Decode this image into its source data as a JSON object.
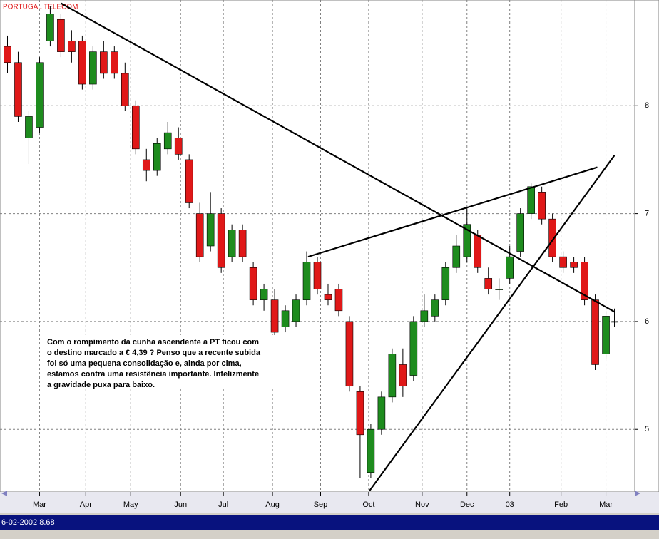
{
  "chart_data": {
    "type": "candlestick",
    "title": "PORTUGAL TELECOM",
    "annotation": [
      "Com o rompimento da cunha ascendente a PT ficou com",
      "o destino marcado a € 4,39 ? Penso que a recente subida",
      "foi só uma pequena consolidação e, ainda por cima,",
      "estamos contra uma resistência importante. Infelizmente",
      "a gravidade puxa para baixo."
    ],
    "status": "6-02-2002 8.68",
    "x": [
      -3,
      -2,
      -1,
      0,
      1,
      2,
      3,
      4,
      5,
      6,
      7,
      8,
      9,
      10,
      11,
      12,
      13,
      14,
      15,
      16,
      17,
      18,
      19,
      20,
      21,
      22,
      23,
      24,
      25,
      26,
      27,
      28,
      29,
      30,
      31,
      32,
      33,
      34,
      35,
      36,
      37,
      38,
      39,
      40,
      41,
      42,
      43,
      44,
      45,
      46,
      47,
      48,
      49,
      50,
      51,
      52,
      53,
      53.8
    ],
    "open": [
      8.55,
      8.4,
      7.7,
      7.8,
      8.6,
      8.8,
      8.6,
      8.6,
      8.2,
      8.5,
      8.5,
      8.3,
      8.0,
      7.5,
      7.4,
      7.6,
      7.7,
      7.5,
      7.0,
      6.7,
      7.0,
      6.6,
      6.85,
      6.5,
      6.2,
      6.2,
      5.95,
      6.0,
      6.2,
      6.55,
      6.25,
      6.3,
      6.0,
      5.35,
      4.6,
      5.0,
      5.3,
      5.6,
      5.5,
      6.0,
      6.05,
      6.2,
      6.5,
      6.6,
      6.8,
      6.4,
      6.3,
      6.4,
      6.65,
      7.0,
      7.2,
      6.95,
      6.6,
      6.55,
      6.55,
      6.2,
      5.7,
      6.0
    ],
    "high": [
      8.65,
      8.5,
      7.95,
      8.45,
      8.92,
      8.85,
      8.7,
      8.65,
      8.55,
      8.6,
      8.55,
      8.4,
      8.05,
      7.6,
      7.7,
      7.85,
      7.8,
      7.55,
      7.1,
      7.2,
      7.05,
      6.9,
      6.9,
      6.55,
      6.35,
      6.3,
      6.15,
      6.25,
      6.65,
      6.6,
      6.35,
      6.35,
      6.05,
      5.4,
      5.05,
      5.35,
      5.75,
      5.75,
      6.05,
      6.25,
      6.25,
      6.55,
      6.8,
      7.05,
      6.85,
      6.5,
      6.4,
      6.7,
      7.05,
      7.28,
      7.25,
      7.0,
      6.65,
      6.6,
      6.6,
      6.25,
      6.1,
      6.12
    ],
    "low": [
      8.3,
      7.85,
      7.46,
      7.75,
      8.55,
      8.45,
      8.4,
      8.15,
      8.15,
      8.25,
      8.25,
      7.95,
      7.55,
      7.3,
      7.35,
      7.55,
      7.5,
      7.05,
      6.55,
      6.65,
      6.45,
      6.55,
      6.55,
      6.15,
      6.1,
      5.74,
      5.9,
      5.95,
      6.15,
      6.25,
      6.15,
      6.05,
      5.35,
      4.55,
      4.55,
      4.95,
      5.25,
      5.3,
      5.45,
      5.95,
      6.0,
      6.15,
      6.45,
      6.55,
      6.45,
      6.25,
      6.2,
      6.35,
      6.6,
      6.95,
      6.9,
      6.55,
      6.45,
      6.45,
      6.15,
      5.55,
      5.65,
      5.95
    ],
    "close": [
      8.4,
      7.9,
      7.9,
      8.4,
      8.85,
      8.5,
      8.5,
      8.2,
      8.5,
      8.3,
      8.3,
      8.0,
      7.6,
      7.4,
      7.65,
      7.75,
      7.55,
      7.1,
      6.6,
      7.0,
      6.5,
      6.85,
      6.6,
      6.2,
      6.3,
      5.9,
      6.1,
      6.2,
      6.55,
      6.3,
      6.2,
      6.1,
      5.4,
      4.95,
      5.0,
      5.3,
      5.7,
      5.4,
      6.0,
      6.1,
      6.2,
      6.5,
      6.7,
      6.9,
      6.5,
      6.3,
      6.3,
      6.6,
      7.0,
      7.25,
      6.95,
      6.6,
      6.5,
      6.5,
      6.2,
      5.6,
      6.05,
      6.0
    ],
    "up_color": "#1e8c1e",
    "down_color": "#e01818",
    "trendlines": [
      [
        2,
        8.95,
        53.8,
        6.09
      ],
      [
        25.13,
        6.6,
        52.2,
        7.43
      ],
      [
        30.87,
        4.43,
        53.8,
        7.54
      ]
    ],
    "xlim": [
      -3.7,
      55.7
    ],
    "ylim": [
      4.42,
      8.98
    ],
    "xticks": [
      {
        "value": 0,
        "label": "Mar"
      },
      {
        "value": 4.33,
        "label": "Apr"
      },
      {
        "value": 8.53,
        "label": "May"
      },
      {
        "value": 13.2,
        "label": "Jun"
      },
      {
        "value": 17.2,
        "label": "Jul"
      },
      {
        "value": 21.8,
        "label": "Aug"
      },
      {
        "value": 26.3,
        "label": "Sep"
      },
      {
        "value": 30.8,
        "label": "Oct"
      },
      {
        "value": 35.8,
        "label": "Nov"
      },
      {
        "value": 40,
        "label": "Dec"
      },
      {
        "value": 44,
        "label": "03"
      },
      {
        "value": 48.8,
        "label": "Feb"
      },
      {
        "value": 53,
        "label": "Mar"
      }
    ],
    "yticks": [
      5,
      6,
      7,
      8
    ],
    "grid": true
  }
}
